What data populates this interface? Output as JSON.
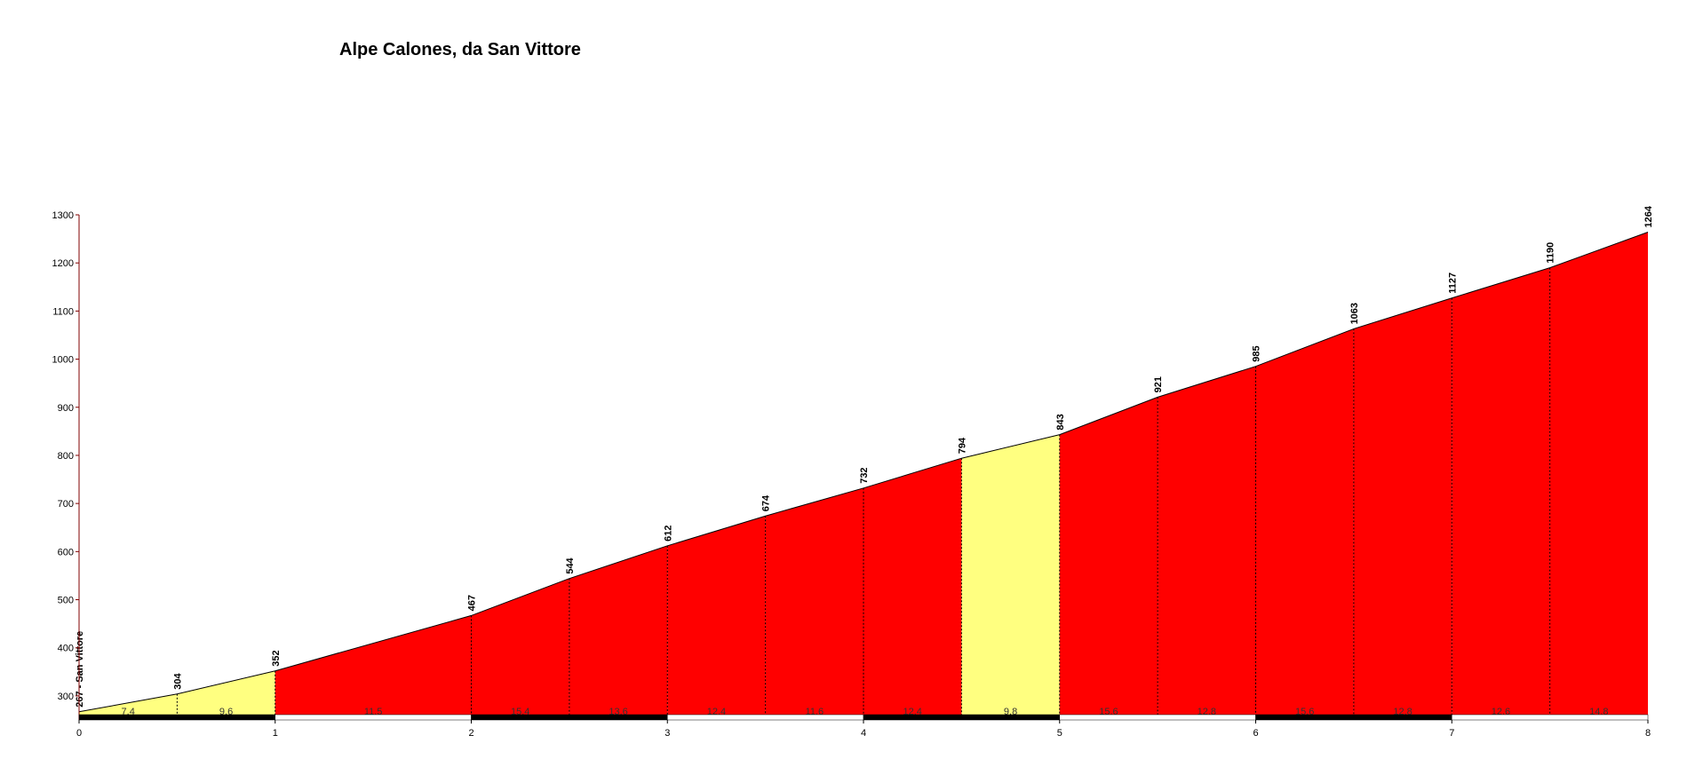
{
  "chart_data": {
    "type": "elevation-profile",
    "title": "Alpe Calones, da San Vittore",
    "x": [
      0,
      0.5,
      1,
      2,
      2.5,
      3,
      3.5,
      4,
      4.5,
      5,
      5.5,
      6,
      6.5,
      7,
      7.5,
      8
    ],
    "values": [
      267,
      304,
      352,
      467,
      544,
      612,
      674,
      732,
      794,
      843,
      921,
      985,
      1063,
      1127,
      1190,
      1264
    ],
    "value_labels": [
      "267 - San Vittore",
      "304",
      "352",
      "467",
      "544",
      "612",
      "674",
      "732",
      "794",
      "843",
      "921",
      "985",
      "1063",
      "1127",
      "1190",
      "1264"
    ],
    "gradients": [
      7.4,
      9.6,
      11.5,
      15.4,
      13.6,
      12.4,
      11.6,
      12.4,
      9.8,
      15.6,
      12.8,
      15.6,
      12.8,
      12.6,
      14.8
    ],
    "segment_colors": [
      "#ffff80",
      "#ffff80",
      "#ff0000",
      "#ff0000",
      "#ff0000",
      "#ff0000",
      "#ff0000",
      "#ff0000",
      "#ffff80",
      "#ff0000",
      "#ff0000",
      "#ff0000",
      "#ff0000",
      "#ff0000",
      "#ff0000"
    ],
    "xlim": [
      0,
      8
    ],
    "xticks": [
      0,
      1,
      2,
      3,
      4,
      5,
      6,
      7,
      8
    ],
    "ylim": [
      250,
      1300
    ],
    "yticks": [
      300,
      400,
      500,
      600,
      700,
      800,
      900,
      1000,
      1100,
      1200,
      1300
    ]
  }
}
